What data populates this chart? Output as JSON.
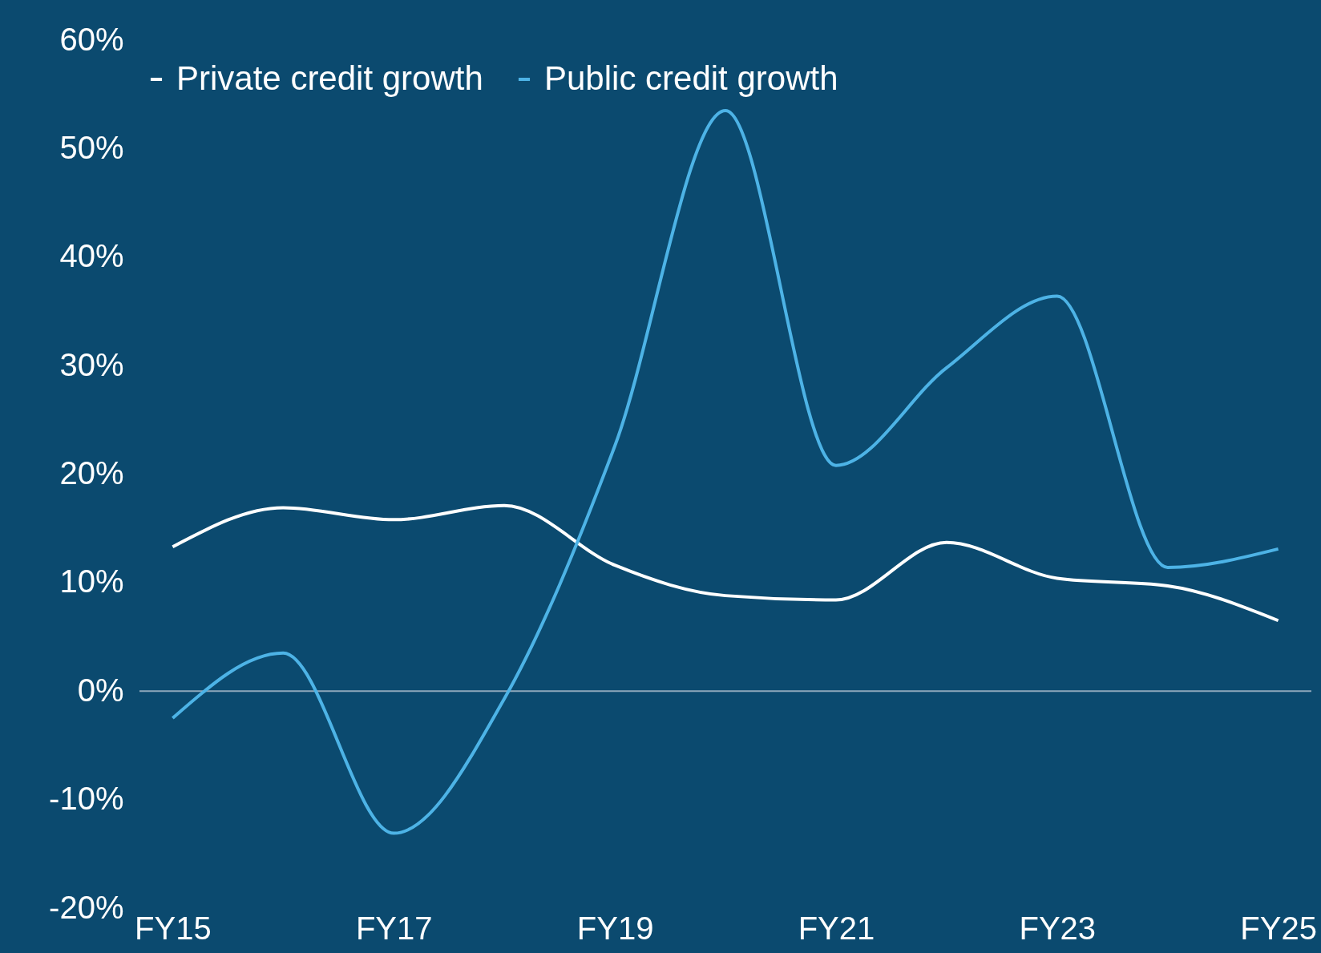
{
  "chart_data": {
    "type": "line",
    "categories": [
      "FY15",
      null,
      "FY17",
      null,
      "FY19",
      null,
      "FY21",
      null,
      "FY23",
      null,
      "FY25"
    ],
    "series": [
      {
        "name": "Private credit growth",
        "color": "#ffffff",
        "values": [
          13.3,
          16.9,
          15.8,
          17.1,
          11.6,
          8.8,
          8.4,
          13.7,
          10.4,
          9.7,
          6.5
        ]
      },
      {
        "name": "Public credit growth",
        "color": "#4db3e6",
        "values": [
          -2.5,
          3.5,
          -13.1,
          -0.7,
          22.6,
          53.5,
          20.8,
          29.8,
          36.4,
          11.4,
          13.1
        ]
      }
    ],
    "ylim": [
      -20,
      60
    ],
    "yticks": [
      {
        "value": -20,
        "label": "-20%"
      },
      {
        "value": -10,
        "label": "-10%"
      },
      {
        "value": 0,
        "label": "0%"
      },
      {
        "value": 10,
        "label": "10%"
      },
      {
        "value": 20,
        "label": "20%"
      },
      {
        "value": 30,
        "label": "30%"
      },
      {
        "value": 40,
        "label": "40%"
      },
      {
        "value": 50,
        "label": "50%"
      },
      {
        "value": 60,
        "label": "60%"
      }
    ],
    "ref_lines": [
      {
        "axis": "y",
        "value": 0,
        "color": "#8fa9bb"
      }
    ],
    "legend": "top",
    "grid": false,
    "marker": "none",
    "line_style": "solid"
  }
}
